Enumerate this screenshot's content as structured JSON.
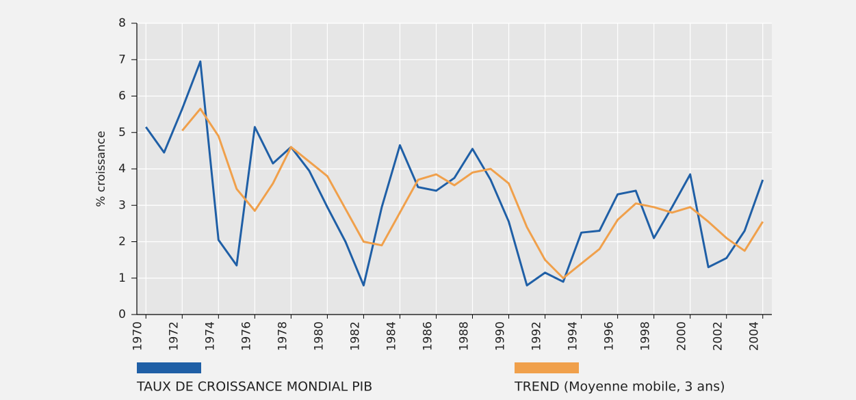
{
  "chart_data": {
    "type": "line",
    "y_label": "% croissance",
    "x": [
      1970,
      1971,
      1972,
      1973,
      1974,
      1975,
      1976,
      1977,
      1978,
      1979,
      1980,
      1981,
      1982,
      1983,
      1984,
      1985,
      1986,
      1987,
      1988,
      1989,
      1990,
      1991,
      1992,
      1993,
      1994,
      1995,
      1996,
      1997,
      1998,
      1999,
      2000,
      2001,
      2002,
      2003,
      2004
    ],
    "series": [
      {
        "name": "TAUX DE CROISSANCE MONDIAL PIB",
        "color": "#1f5fa6",
        "values": [
          5.15,
          4.45,
          5.65,
          6.95,
          2.05,
          1.35,
          5.15,
          4.15,
          4.6,
          3.95,
          2.95,
          2.0,
          0.8,
          2.95,
          4.65,
          3.5,
          3.4,
          3.75,
          4.55,
          3.7,
          2.55,
          0.8,
          1.15,
          0.9,
          2.25,
          2.3,
          3.3,
          3.4,
          2.1,
          2.95,
          3.85,
          1.3,
          1.55,
          2.3,
          3.7
        ]
      },
      {
        "name": "TREND (Moyenne mobile, 3 ans)",
        "color": "#f0a04b",
        "values": [
          null,
          null,
          5.05,
          5.65,
          4.9,
          3.45,
          2.85,
          3.6,
          4.6,
          4.2,
          3.8,
          2.9,
          2.0,
          1.9,
          2.8,
          3.7,
          3.85,
          3.55,
          3.9,
          4.0,
          3.6,
          2.4,
          1.5,
          1.0,
          1.4,
          1.8,
          2.6,
          3.05,
          2.95,
          2.8,
          2.95,
          2.55,
          2.1,
          1.75,
          2.55
        ]
      }
    ],
    "xlim": [
      1969.5,
      2004.5
    ],
    "xticks": [
      1970,
      1972,
      1974,
      1976,
      1978,
      1980,
      1982,
      1984,
      1986,
      1988,
      1990,
      1992,
      1994,
      1996,
      1998,
      2000,
      2002,
      2004
    ],
    "ylim": [
      0,
      8
    ],
    "yticks": [
      0,
      1,
      2,
      3,
      4,
      5,
      6,
      7,
      8
    ],
    "grid": true,
    "legend": "bottom"
  }
}
